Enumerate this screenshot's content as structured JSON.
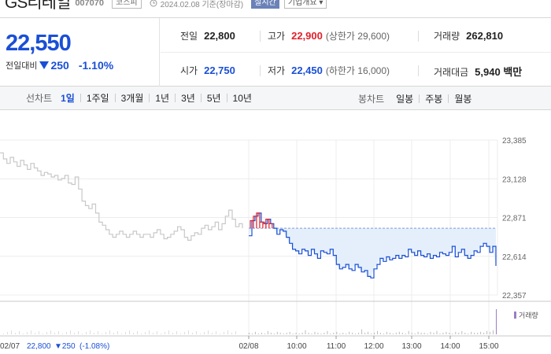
{
  "header": {
    "stock_name": "GS리테일",
    "stock_code": "007070",
    "market": "코스피",
    "date_basis": "2024.02.08 기준(장마감)",
    "realtime": "실시간",
    "company_overview": "기업개요 ▾"
  },
  "price": {
    "current": "22,550",
    "change_label": "전일대비",
    "change_value": "250",
    "change_percent": "-1.10%",
    "direction": "down"
  },
  "metrics": {
    "prev_close_label": "전일",
    "prev_close": "22,800",
    "high_label": "고가",
    "high": "22,900",
    "upper_limit_text": "(상한가 29,600)",
    "volume_label": "거래량",
    "volume": "262,810",
    "open_label": "시가",
    "open": "22,750",
    "low_label": "저가",
    "low": "22,450",
    "lower_limit_text": "(하한가 16,000)",
    "trade_value_label": "거래대금",
    "trade_value": "5,940 백만"
  },
  "toolbar": {
    "line_chart_label": "선차트",
    "periods": [
      "1일",
      "1주일",
      "3개월",
      "1년",
      "3년",
      "5년",
      "10년"
    ],
    "active_period": "1일",
    "candle_label": "봉차트",
    "candles": [
      "일봉",
      "주봉",
      "월봉"
    ]
  },
  "colors": {
    "down": "#1a4fd6",
    "up": "#e0202a",
    "prev_line": "#c8c8c8",
    "fill": "#e4effb"
  },
  "chart_data": {
    "type": "line",
    "y_ticks": [
      "23,385",
      "23,128",
      "22,871",
      "22,614",
      "22,357"
    ],
    "ylim": [
      22357,
      23385
    ],
    "x_ticks": [
      "02/08",
      "10:00",
      "11:00",
      "12:00",
      "13:00",
      "14:00",
      "15:00"
    ],
    "volume_label": "거래량",
    "prev_day_note": {
      "date": "02/07",
      "price": "22,800",
      "change": "▼250",
      "pct": "(-1.08%)"
    },
    "prev_day_series": {
      "name": "02/07",
      "values": [
        23300,
        23260,
        23230,
        23270,
        23240,
        23210,
        23250,
        23220,
        23190,
        23230,
        23200,
        23180,
        23150,
        23170,
        23160,
        23140,
        23150,
        23120,
        23130,
        23150,
        23100,
        23090,
        23140,
        23060,
        22980,
        22950,
        22930,
        22960,
        22900,
        22840,
        22820,
        22790,
        22760,
        22740,
        22760,
        22780,
        22760,
        22740,
        22760,
        22780,
        22760,
        22740,
        22760,
        22760,
        22740,
        22770,
        22790,
        22760,
        22730,
        22740,
        22760,
        22780,
        22810,
        22790,
        22740,
        22720,
        22750,
        22770,
        22760,
        22800,
        22820,
        22790,
        22810,
        22840,
        22790,
        22830,
        22880,
        22920,
        22860,
        22810,
        22830,
        22800
      ]
    },
    "today_series": {
      "name": "02/08",
      "values": [
        22750,
        22850,
        22880,
        22900,
        22840,
        22830,
        22860,
        22830,
        22800,
        22760,
        22790,
        22780,
        22740,
        22700,
        22660,
        22650,
        22630,
        22660,
        22650,
        22620,
        22660,
        22630,
        22600,
        22650,
        22640,
        22630,
        22660,
        22620,
        22560,
        22530,
        22540,
        22560,
        22530,
        22520,
        22560,
        22540,
        22510,
        22520,
        22480,
        22470,
        22530,
        22560,
        22600,
        22580,
        22610,
        22590,
        22600,
        22620,
        22600,
        22620,
        22610,
        22660,
        22640,
        22620,
        22650,
        22620,
        22610,
        22630,
        22600,
        22620,
        22610,
        22640,
        22630,
        22620,
        22640,
        22680,
        22610,
        22640,
        22660,
        22620,
        22600,
        22620,
        22650,
        22640,
        22680,
        22700,
        22680,
        22640,
        22680,
        22550
      ]
    },
    "reference_price": 22800,
    "volume": [
      2,
      1,
      3,
      1,
      2,
      1,
      4,
      2,
      1,
      3,
      2,
      1,
      2,
      3,
      1,
      2,
      1,
      2,
      5,
      2,
      1,
      3,
      2,
      1,
      2,
      4,
      1,
      2,
      3,
      1,
      2,
      1,
      3,
      2,
      1,
      2,
      6,
      2,
      3,
      1,
      2,
      4,
      2,
      1,
      3,
      2,
      1,
      2,
      3,
      2,
      1,
      4,
      2,
      1,
      3,
      2,
      2,
      1,
      3,
      2,
      4,
      1,
      2,
      3,
      2,
      1,
      3,
      2,
      4,
      2,
      1,
      3,
      2,
      2,
      3,
      2,
      4,
      3,
      5,
      30
    ]
  }
}
